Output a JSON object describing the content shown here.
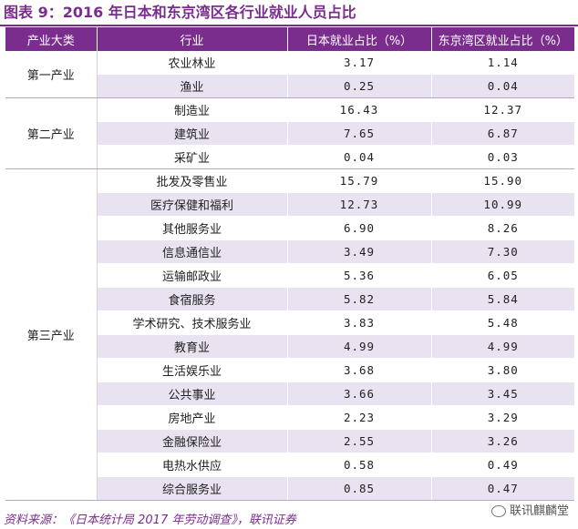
{
  "title": "图表 9：2016 年日本和东京湾区各行业就业人员占比",
  "headers": [
    "产业大类",
    "行业",
    "日本就业占比（%）",
    "东京湾区就业占比（%）"
  ],
  "groups": [
    {
      "category": "第一产业",
      "rows": [
        {
          "industry": "农业林业",
          "japan": "3.17",
          "tokyo": "1.14"
        },
        {
          "industry": "渔业",
          "japan": "0.25",
          "tokyo": "0.04"
        }
      ]
    },
    {
      "category": "第二产业",
      "rows": [
        {
          "industry": "制造业",
          "japan": "16.43",
          "tokyo": "12.37"
        },
        {
          "industry": "建筑业",
          "japan": "7.65",
          "tokyo": "6.87"
        },
        {
          "industry": "采矿业",
          "japan": "0.04",
          "tokyo": "0.03"
        }
      ]
    },
    {
      "category": "第三产业",
      "rows": [
        {
          "industry": "批发及零售业",
          "japan": "15.79",
          "tokyo": "15.90"
        },
        {
          "industry": "医疗保健和福利",
          "japan": "12.73",
          "tokyo": "10.99"
        },
        {
          "industry": "其他服务业",
          "japan": "6.90",
          "tokyo": "8.26"
        },
        {
          "industry": "信息通信业",
          "japan": "3.49",
          "tokyo": "7.30"
        },
        {
          "industry": "运输邮政业",
          "japan": "5.36",
          "tokyo": "6.05"
        },
        {
          "industry": "食宿服务",
          "japan": "5.82",
          "tokyo": "5.84"
        },
        {
          "industry": "学术研究、技术服务业",
          "japan": "3.83",
          "tokyo": "5.48"
        },
        {
          "industry": "教育业",
          "japan": "4.99",
          "tokyo": "4.99"
        },
        {
          "industry": "生活娱乐业",
          "japan": "3.68",
          "tokyo": "3.80"
        },
        {
          "industry": "公共事业",
          "japan": "3.66",
          "tokyo": "3.45"
        },
        {
          "industry": "房地产业",
          "japan": "2.23",
          "tokyo": "3.29"
        },
        {
          "industry": "金融保险业",
          "japan": "2.55",
          "tokyo": "3.26"
        },
        {
          "industry": "电热水供应",
          "japan": "0.58",
          "tokyo": "0.49"
        },
        {
          "industry": "综合服务业",
          "japan": "0.85",
          "tokyo": "0.47"
        }
      ]
    }
  ],
  "source": "资料来源：《日本统计局 2017 年劳动调查》，联讯证券",
  "watermark": "联讯麒麟堂",
  "colors": {
    "accent": "#7b2d8e",
    "stripe": "#e9e2f0"
  }
}
